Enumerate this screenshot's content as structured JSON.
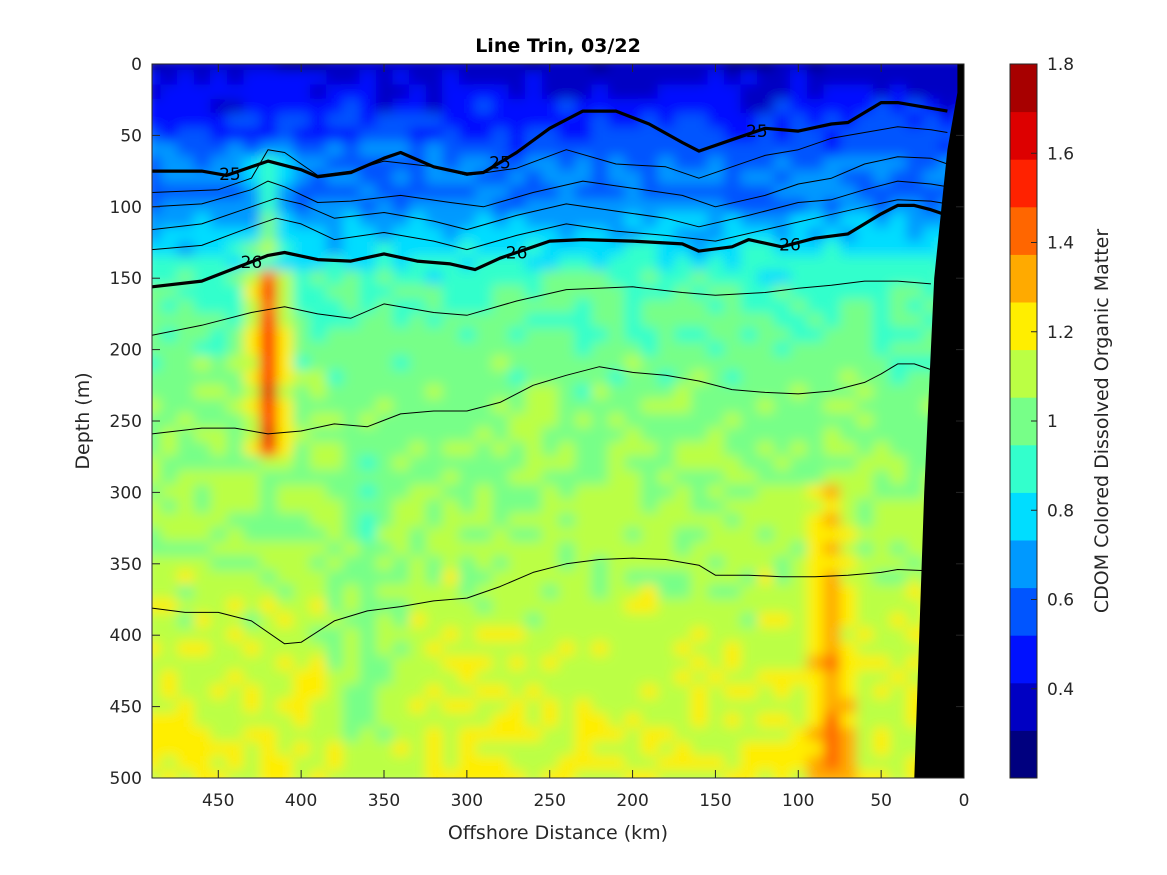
{
  "chart_data": {
    "type": "heatmap",
    "title": "Line Trin, 03/22",
    "xlabel": "Offshore Distance (km)",
    "ylabel": "Depth (m)",
    "colorbar_label": "CDOM Colored Dissolved Organic Matter",
    "xlim": [
      490,
      0
    ],
    "ylim": [
      0,
      500
    ],
    "x_reversed": true,
    "y_reversed": true,
    "x_ticks": [
      450,
      400,
      350,
      300,
      250,
      200,
      150,
      100,
      50,
      0
    ],
    "y_ticks": [
      0,
      50,
      100,
      150,
      200,
      250,
      300,
      350,
      400,
      450,
      500
    ],
    "clim": [
      0.2,
      1.8
    ],
    "colorbar_ticks": [
      0.4,
      0.6,
      0.8,
      1,
      1.2,
      1.4,
      1.6,
      1.8
    ],
    "colorbar_ticks_text": [
      "0.4",
      "0.6",
      "0.8",
      "1",
      "1.2",
      "1.4",
      "1.6",
      "1.8"
    ],
    "colormap": [
      "#00007f",
      "#0000c3",
      "#0011ff",
      "#0055ff",
      "#0099ff",
      "#00ddff",
      "#33ffcc",
      "#77ff88",
      "#bbff44",
      "#ffee00",
      "#ffaa00",
      "#ff6600",
      "#ff2200",
      "#dd0000",
      "#a70000"
    ],
    "field_description_levels": {
      "surface_0_100m_mean": 0.45,
      "thermocline_100_150m_mean": 0.7,
      "intermediate_150_300m_mean": 0.95,
      "deep_300_500m_mean": 1.12,
      "plume_near_420km_max": 1.5
    },
    "isopycnals": [
      {
        "label": "25",
        "bold": true,
        "x": [
          490,
          460,
          445,
          420,
          400,
          390,
          370,
          350,
          340,
          320,
          300,
          290,
          270,
          250,
          230,
          210,
          190,
          170,
          160,
          140,
          120,
          100,
          80,
          70,
          50,
          40,
          25,
          10
        ],
        "y": [
          75,
          75,
          78,
          68,
          74,
          79,
          76,
          66,
          62,
          72,
          77,
          76,
          62,
          45,
          33,
          33,
          42,
          55,
          61,
          53,
          45,
          47,
          42,
          41,
          27,
          27,
          30,
          33
        ]
      },
      {
        "label": "26",
        "bold": true,
        "x": [
          490,
          460,
          440,
          420,
          410,
          390,
          370,
          350,
          330,
          310,
          295,
          280,
          250,
          230,
          200,
          170,
          160,
          140,
          130,
          110,
          90,
          70,
          50,
          40,
          30,
          20,
          10
        ],
        "y": [
          156,
          152,
          143,
          134,
          132,
          137,
          138,
          133,
          138,
          140,
          144,
          136,
          124,
          123,
          124,
          126,
          131,
          128,
          123,
          128,
          122,
          119,
          105,
          99,
          99,
          102,
          106
        ]
      },
      {
        "label": "",
        "bold": false,
        "x": [
          490,
          450,
          430,
          420,
          410,
          390,
          370,
          350,
          320,
          300,
          270,
          240,
          210,
          180,
          160,
          140,
          120,
          100,
          80,
          60,
          40,
          20,
          10
        ],
        "y": [
          90,
          88,
          80,
          60,
          62,
          78,
          75,
          68,
          72,
          78,
          73,
          60,
          70,
          72,
          80,
          72,
          64,
          60,
          52,
          48,
          44,
          46,
          48
        ]
      },
      {
        "label": "",
        "bold": false,
        "x": [
          490,
          460,
          430,
          420,
          410,
          390,
          370,
          340,
          310,
          290,
          260,
          230,
          200,
          170,
          150,
          120,
          100,
          80,
          60,
          40,
          20,
          10
        ],
        "y": [
          100,
          98,
          88,
          82,
          86,
          97,
          96,
          92,
          97,
          100,
          90,
          82,
          87,
          92,
          100,
          92,
          84,
          80,
          70,
          65,
          66,
          70
        ]
      },
      {
        "label": "",
        "bold": false,
        "x": [
          490,
          460,
          430,
          415,
          400,
          380,
          350,
          320,
          300,
          270,
          240,
          210,
          180,
          160,
          130,
          100,
          80,
          60,
          40,
          20,
          10
        ],
        "y": [
          116,
          112,
          100,
          94,
          98,
          108,
          104,
          110,
          116,
          106,
          98,
          103,
          108,
          114,
          106,
          97,
          95,
          88,
          82,
          84,
          86
        ]
      },
      {
        "label": "",
        "bold": false,
        "x": [
          490,
          460,
          430,
          415,
          400,
          380,
          350,
          320,
          300,
          270,
          240,
          210,
          180,
          150,
          120,
          90,
          60,
          40,
          20,
          10
        ],
        "y": [
          130,
          127,
          114,
          108,
          112,
          123,
          118,
          124,
          130,
          120,
          112,
          117,
          120,
          124,
          116,
          108,
          100,
          95,
          96,
          98
        ]
      },
      {
        "label": "",
        "bold": false,
        "x": [
          490,
          460,
          430,
          410,
          390,
          370,
          350,
          320,
          300,
          270,
          240,
          200,
          170,
          150,
          120,
          100,
          80,
          60,
          40,
          20
        ],
        "y": [
          190,
          183,
          174,
          170,
          175,
          178,
          168,
          174,
          176,
          166,
          158,
          156,
          160,
          162,
          160,
          157,
          155,
          152,
          152,
          154
        ]
      },
      {
        "label": "",
        "bold": false,
        "x": [
          490,
          460,
          440,
          420,
          400,
          380,
          360,
          340,
          320,
          300,
          280,
          260,
          240,
          220,
          200,
          180,
          160,
          140,
          120,
          100,
          80,
          60,
          50,
          40,
          30,
          20
        ],
        "y": [
          259,
          255,
          255,
          259,
          257,
          252,
          254,
          245,
          243,
          243,
          237,
          225,
          218,
          212,
          216,
          218,
          222,
          228,
          230,
          231,
          229,
          223,
          217,
          210,
          210,
          214
        ]
      },
      {
        "label": "",
        "bold": false,
        "x": [
          490,
          470,
          450,
          430,
          410,
          400,
          380,
          360,
          340,
          320,
          300,
          280,
          260,
          240,
          220,
          200,
          180,
          160,
          150,
          130,
          110,
          90,
          70,
          50,
          40,
          20
        ],
        "y": [
          381,
          384,
          384,
          390,
          406,
          405,
          390,
          383,
          380,
          376,
          374,
          366,
          356,
          350,
          347,
          346,
          347,
          351,
          358,
          358,
          359,
          359,
          358,
          356,
          354,
          355
        ]
      }
    ]
  }
}
